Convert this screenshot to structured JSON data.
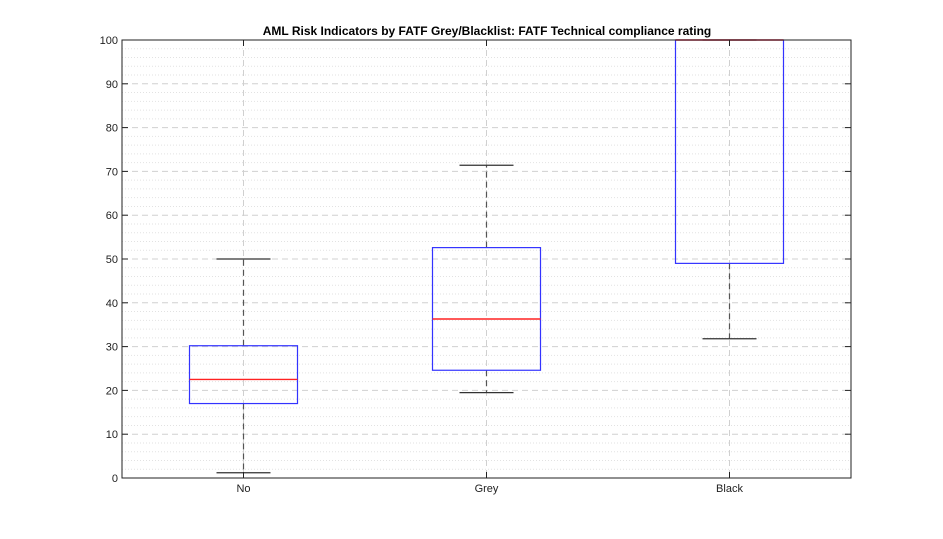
{
  "chart_data": {
    "type": "box",
    "title": "AML Risk Indicators by FATF Grey/Blacklist: FATF Technical compliance rating",
    "xlabel": "",
    "ylabel": "",
    "categories": [
      "No",
      "Grey",
      "Black"
    ],
    "boxes": [
      {
        "category": "No",
        "whisker_low": 1.2,
        "q1": 17.0,
        "median": 22.5,
        "q3": 30.2,
        "whisker_high": 50.0
      },
      {
        "category": "Grey",
        "whisker_low": 19.5,
        "q1": 24.6,
        "median": 36.3,
        "q3": 52.6,
        "whisker_high": 71.4
      },
      {
        "category": "Black",
        "whisker_low": 31.8,
        "q1": 49.0,
        "median": 100.0,
        "q3": 100.0,
        "whisker_high": 100.0
      }
    ],
    "ylim": [
      0,
      100
    ],
    "yticks": [
      0,
      10,
      20,
      30,
      40,
      50,
      60,
      70,
      80,
      90,
      100
    ],
    "grid": "on (major dashed, minor dotted)",
    "legend": "none",
    "colors": {
      "box": "#3333ff",
      "median": "#ff2222",
      "whisker": "#555555",
      "axes": "#222222",
      "grid": "#d0d0d0"
    }
  }
}
